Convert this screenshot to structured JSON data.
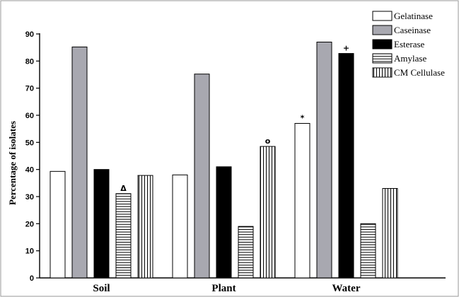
{
  "chart_data": {
    "type": "bar",
    "ylabel": "Percentage of isolates",
    "xlabel": "",
    "ylim": [
      0,
      90
    ],
    "yticks": [
      0,
      10,
      20,
      30,
      40,
      50,
      60,
      70,
      80,
      90
    ],
    "categories": [
      "Soil",
      "Plant",
      "Water"
    ],
    "legend_position": "top-right",
    "series": [
      {
        "name": "Gelatinase",
        "values": [
          39.3,
          38,
          57
        ],
        "fill": "#ffffff",
        "pattern": "solid"
      },
      {
        "name": "Caseinase",
        "values": [
          85.2,
          75.2,
          87
        ],
        "fill": "#a8a8b0",
        "pattern": "solid"
      },
      {
        "name": "Esterase",
        "values": [
          40,
          41,
          82.8
        ],
        "fill": "#000000",
        "pattern": "solid"
      },
      {
        "name": "Amylase",
        "values": [
          31.1,
          19,
          20
        ],
        "fill": "#ffffff",
        "pattern": "horizontal-lines"
      },
      {
        "name": "CM Cellulase",
        "values": [
          37.8,
          48.5,
          33
        ],
        "fill": "#ffffff",
        "pattern": "vertical-lines"
      }
    ],
    "annotations": [
      {
        "series": "Amylase",
        "category": "Soil",
        "text": "Δ"
      },
      {
        "series": "CM Cellulase",
        "category": "Plant",
        "text": "o"
      },
      {
        "series": "Gelatinase",
        "category": "Water",
        "text": "*"
      },
      {
        "series": "Esterase",
        "category": "Water",
        "text": "+"
      }
    ]
  }
}
